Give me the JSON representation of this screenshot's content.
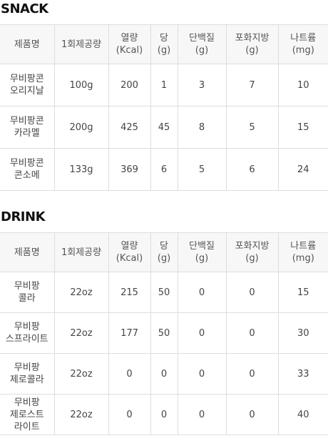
{
  "snack": {
    "title": "SNACK",
    "headers": [
      {
        "l1": "제품명",
        "l2": ""
      },
      {
        "l1": "1회제공량",
        "l2": ""
      },
      {
        "l1": "열량",
        "l2": "(Kcal)"
      },
      {
        "l1": "당",
        "l2": "(g)"
      },
      {
        "l1": "단백질",
        "l2": "(g)"
      },
      {
        "l1": "포화지방",
        "l2": "(g)"
      },
      {
        "l1": "나트륨",
        "l2": "(mg)"
      }
    ],
    "rows": [
      {
        "name1": "무비팡콘",
        "name2": "오리지날",
        "name3": "",
        "serving": "100g",
        "kcal": "200",
        "sugar": "1",
        "protein": "3",
        "satfat": "7",
        "sodium": "10"
      },
      {
        "name1": "무비팡콘",
        "name2": "카라멜",
        "name3": "",
        "serving": "200g",
        "kcal": "425",
        "sugar": "45",
        "protein": "8",
        "satfat": "5",
        "sodium": "15"
      },
      {
        "name1": "무비팡콘",
        "name2": "콘소메",
        "name3": "",
        "serving": "133g",
        "kcal": "369",
        "sugar": "6",
        "protein": "5",
        "satfat": "6",
        "sodium": "24"
      }
    ]
  },
  "drink": {
    "title": "DRINK",
    "headers": [
      {
        "l1": "제품명",
        "l2": ""
      },
      {
        "l1": "1회제공량",
        "l2": ""
      },
      {
        "l1": "열량",
        "l2": "(Kcal)"
      },
      {
        "l1": "당",
        "l2": "(g)"
      },
      {
        "l1": "단백질",
        "l2": "(g)"
      },
      {
        "l1": "포화지방",
        "l2": "(g)"
      },
      {
        "l1": "나트륨",
        "l2": "(mg)"
      }
    ],
    "rows": [
      {
        "name1": "무비팡",
        "name2": "콜라",
        "name3": "",
        "serving": "22oz",
        "kcal": "215",
        "sugar": "50",
        "protein": "0",
        "satfat": "0",
        "sodium": "15"
      },
      {
        "name1": "무비팡",
        "name2": "스프라이트",
        "name3": "",
        "serving": "22oz",
        "kcal": "177",
        "sugar": "50",
        "protein": "0",
        "satfat": "0",
        "sodium": "30"
      },
      {
        "name1": "무비팡",
        "name2": "제로콜라",
        "name3": "",
        "serving": "22oz",
        "kcal": "0",
        "sugar": "0",
        "protein": "0",
        "satfat": "0",
        "sodium": "33"
      },
      {
        "name1": "무비팡",
        "name2": "제로스트",
        "name3": "라이트",
        "serving": "22oz",
        "kcal": "0",
        "sugar": "0",
        "protein": "0",
        "satfat": "0",
        "sodium": "40"
      }
    ]
  }
}
